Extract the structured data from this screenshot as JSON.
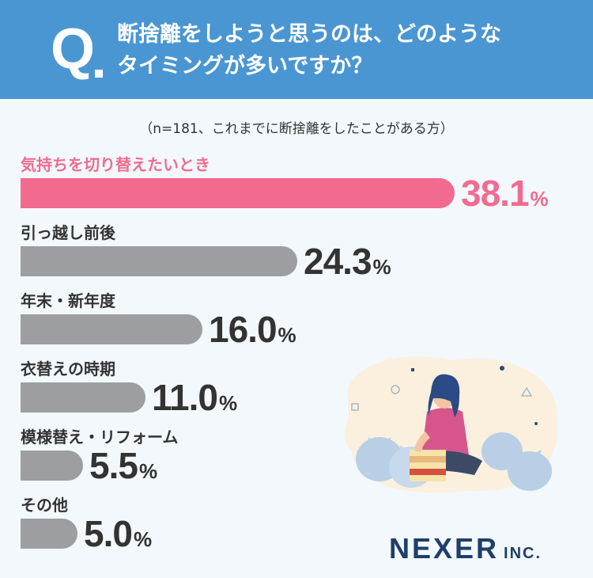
{
  "header": {
    "q_mark": "Q",
    "question_line1": "断捨離をしようと思うのは、どのような",
    "question_line2": "タイミングが多いですか？"
  },
  "note": "（n=181、これまでに断捨離をしたことがある方）",
  "chart_data": {
    "type": "bar",
    "orientation": "horizontal",
    "categories": [
      "気持ちを切り替えたいとき",
      "引っ越し前後",
      "年末・新年度",
      "衣替えの時期",
      "模様替え・リフォーム",
      "その他"
    ],
    "values": [
      38.1,
      24.3,
      16.0,
      11.0,
      5.5,
      5.0
    ],
    "value_labels": [
      "38.1",
      "24.3",
      "16.0",
      "11.0",
      "5.5",
      "5.0"
    ],
    "unit": "%",
    "highlight_index": 0,
    "colors": {
      "highlight": "#f26b8f",
      "default": "#9d9ea2",
      "highlight_text": "#f26b8f",
      "default_text": "#333333"
    }
  },
  "logo": {
    "main": "NEXER",
    "suffix": "INC."
  }
}
